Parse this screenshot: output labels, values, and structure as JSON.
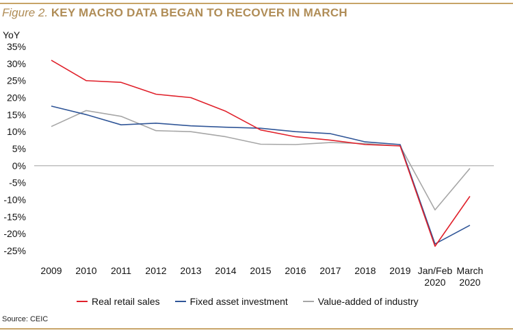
{
  "header": {
    "figure_label": "Figure 2.",
    "title": "KEY MACRO DATA BEGAN TO RECOVER IN MARCH"
  },
  "footer": {
    "source": "Source: CEIC"
  },
  "chart_data": {
    "type": "line",
    "title": "KEY MACRO DATA BEGAN TO RECOVER IN MARCH",
    "ylabel": "YoY",
    "xlabel": "",
    "ylim": [
      -25,
      35
    ],
    "yticks": [
      35,
      30,
      25,
      20,
      15,
      10,
      5,
      0,
      -5,
      -10,
      -15,
      -20,
      -25
    ],
    "ytick_labels": [
      "35%",
      "30%",
      "25%",
      "20%",
      "15%",
      "10%",
      "5%",
      "0%",
      "-5%",
      "-10%",
      "-15%",
      "-20%",
      "-25%"
    ],
    "categories": [
      "2009",
      "2010",
      "2011",
      "2012",
      "2013",
      "2014",
      "2015",
      "2016",
      "2017",
      "2018",
      "2019",
      "Jan/Feb 2020",
      "March 2020"
    ],
    "category_lines": [
      [
        "2009"
      ],
      [
        "2010"
      ],
      [
        "2011"
      ],
      [
        "2012"
      ],
      [
        "2013"
      ],
      [
        "2014"
      ],
      [
        "2015"
      ],
      [
        "2016"
      ],
      [
        "2017"
      ],
      [
        "2018"
      ],
      [
        "2019"
      ],
      [
        "Jan/Feb",
        "2020"
      ],
      [
        "March",
        "2020"
      ]
    ],
    "grid": false,
    "legend_position": "bottom",
    "series": [
      {
        "name": "Real retail sales",
        "color": "#e0202a",
        "values": [
          31.0,
          25.0,
          24.5,
          21.0,
          20.0,
          16.0,
          10.5,
          8.5,
          7.5,
          6.2,
          5.8,
          -23.7,
          -9.0
        ]
      },
      {
        "name": "Fixed asset investment",
        "color": "#2f5597",
        "values": [
          17.5,
          15.0,
          12.0,
          12.5,
          11.7,
          11.3,
          11.0,
          10.0,
          9.4,
          7.0,
          6.2,
          -23.0,
          -17.5
        ]
      },
      {
        "name": "Value-added of industry",
        "color": "#a6a6a6",
        "values": [
          11.5,
          16.2,
          14.5,
          10.3,
          10.0,
          8.5,
          6.3,
          6.2,
          6.8,
          6.5,
          5.8,
          -13.0,
          -0.8
        ]
      }
    ]
  }
}
